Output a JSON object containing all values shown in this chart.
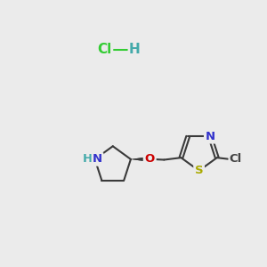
{
  "background_color": "#ebebeb",
  "bond_color": "#3a3a3a",
  "bond_width": 1.5,
  "atom_colors": {
    "N": "#3333cc",
    "O": "#cc0000",
    "S": "#aaaa00",
    "Cl_green": "#33cc33",
    "Cl_gray": "#444444",
    "H_teal": "#44aaaa",
    "C": "#3a3a3a"
  },
  "font_size_atoms": 9.5,
  "font_size_hcl": 11
}
